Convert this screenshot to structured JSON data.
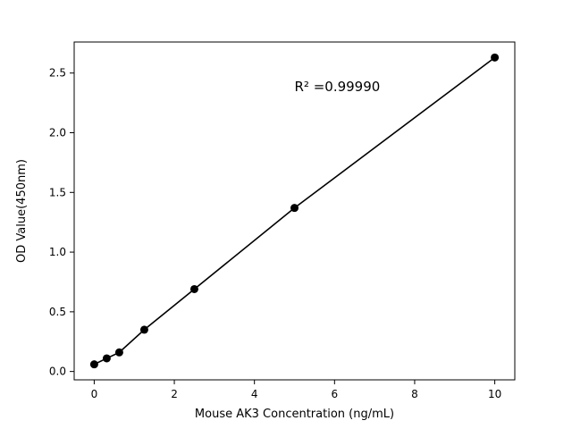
{
  "chart_data": {
    "type": "scatter",
    "title": "",
    "xlabel": "Mouse AK3 Concentration (ng/mL)",
    "ylabel": "OD Value(450nm)",
    "x": [
      0,
      0.3125,
      0.625,
      1.25,
      2.5,
      5,
      10
    ],
    "y": [
      0.06,
      0.11,
      0.16,
      0.35,
      0.69,
      1.37,
      2.63
    ],
    "line_through_points": true,
    "xlim": [
      -0.5,
      10.5
    ],
    "ylim": [
      -0.07,
      2.76
    ],
    "x_ticks": [
      0,
      2,
      4,
      6,
      8,
      10
    ],
    "y_ticks": [
      0.0,
      0.5,
      1.0,
      1.5,
      2.0,
      2.5
    ],
    "grid": false,
    "legend": "none",
    "annotation": {
      "text": "R² =0.99990",
      "x": 5.0,
      "y": 2.35
    },
    "colors": {
      "line": "#000000",
      "marker": "#000000",
      "axis": "#000000",
      "background": "#ffffff"
    }
  }
}
